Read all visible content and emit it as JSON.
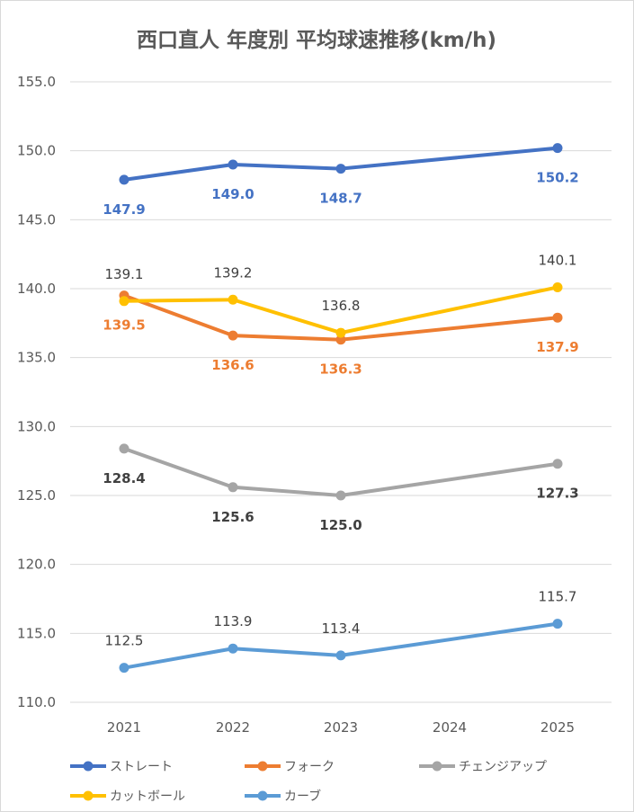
{
  "chart_data": {
    "type": "line",
    "title": "西口直人 年度別 平均球速推移(km/h)",
    "categories": [
      "2021",
      "2022",
      "2023",
      "2024",
      "2025"
    ],
    "ylim": [
      110,
      155
    ],
    "yticks": [
      "110.0",
      "115.0",
      "120.0",
      "125.0",
      "130.0",
      "135.0",
      "140.0",
      "145.0",
      "150.0",
      "155.0"
    ],
    "grid": true,
    "legend_position": "bottom",
    "series": [
      {
        "name": "ストレート",
        "color": "#4472c4",
        "label_color": "#4472c4",
        "label_bold": true,
        "label_pos": "below",
        "values": [
          147.9,
          149.0,
          148.7,
          null,
          150.2
        ],
        "labels": [
          "147.9",
          "149.0",
          "148.7",
          "",
          "150.2"
        ]
      },
      {
        "name": "フォーク",
        "color": "#ed7d31",
        "label_color": "#ed7d31",
        "label_bold": true,
        "label_pos": "below",
        "values": [
          139.5,
          136.6,
          136.3,
          null,
          137.9
        ],
        "labels": [
          "139.5",
          "136.6",
          "136.3",
          "",
          "137.9"
        ]
      },
      {
        "name": "チェンジアップ",
        "color": "#a5a5a5",
        "label_color": "#404040",
        "label_bold": true,
        "label_pos": "below",
        "values": [
          128.4,
          125.6,
          125.0,
          null,
          127.3
        ],
        "labels": [
          "128.4",
          "125.6",
          "125.0",
          "",
          "127.3"
        ]
      },
      {
        "name": "カットボール",
        "color": "#ffc000",
        "label_color": "#404040",
        "label_bold": false,
        "label_pos": "above",
        "values": [
          139.1,
          139.2,
          136.8,
          null,
          140.1
        ],
        "labels": [
          "139.1",
          "139.2",
          "136.8",
          "",
          "140.1"
        ]
      },
      {
        "name": "カーブ",
        "color": "#5b9bd5",
        "label_color": "#404040",
        "label_bold": false,
        "label_pos": "above",
        "values": [
          112.5,
          113.9,
          113.4,
          null,
          115.7
        ],
        "labels": [
          "112.5",
          "113.9",
          "113.4",
          "",
          "115.7"
        ]
      }
    ]
  }
}
